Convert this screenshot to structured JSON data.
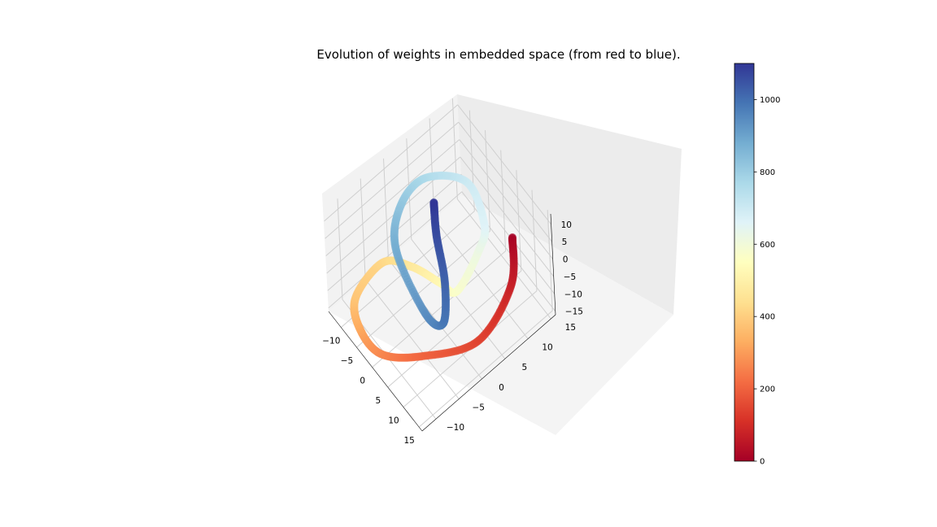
{
  "chart_data": {
    "type": "scatter",
    "projection": "3d",
    "title": "Evolution of weights in embedded space (from red to blue).",
    "xlabel": "",
    "ylabel": "",
    "zlabel": "",
    "xlim": [
      -14,
      16
    ],
    "ylim": [
      -13,
      16
    ],
    "zlim": [
      -16,
      13
    ],
    "xticks": [
      -10,
      -5,
      0,
      5,
      10,
      15
    ],
    "yticks": [
      -10,
      -5,
      0,
      5,
      10,
      15
    ],
    "zticks": [
      -15,
      -10,
      -5,
      0,
      5,
      10
    ],
    "grid": true,
    "colormap": "RdYlBu",
    "color_scale": {
      "min": 0,
      "max": 1100,
      "ticks": [
        0,
        200,
        400,
        600,
        800,
        1000
      ]
    },
    "trajectory": {
      "t": [
        0,
        70,
        140,
        200,
        260,
        320,
        380,
        420,
        470,
        520,
        570,
        620,
        660,
        700,
        760,
        820,
        880,
        940,
        980,
        1020,
        1060,
        1100
      ],
      "x": [
        14,
        13.5,
        12,
        6,
        0,
        -7,
        -11,
        -11,
        -6,
        0,
        4,
        4,
        3,
        -4,
        -10,
        -9,
        -3,
        6,
        7,
        0,
        -7,
        -9
      ],
      "y": [
        9,
        8.5,
        2,
        -6,
        -11,
        -11,
        -9,
        -3,
        0,
        2,
        3,
        8,
        10,
        11,
        6,
        0,
        -5,
        -5,
        -2,
        3,
        6,
        7
      ],
      "z": [
        12,
        -2,
        -12,
        -14,
        -14.5,
        -15,
        -13,
        -10,
        -9,
        -9,
        -8,
        -2,
        2,
        5,
        5,
        5,
        5,
        -3,
        -8,
        -10,
        -8,
        -2
      ]
    }
  }
}
